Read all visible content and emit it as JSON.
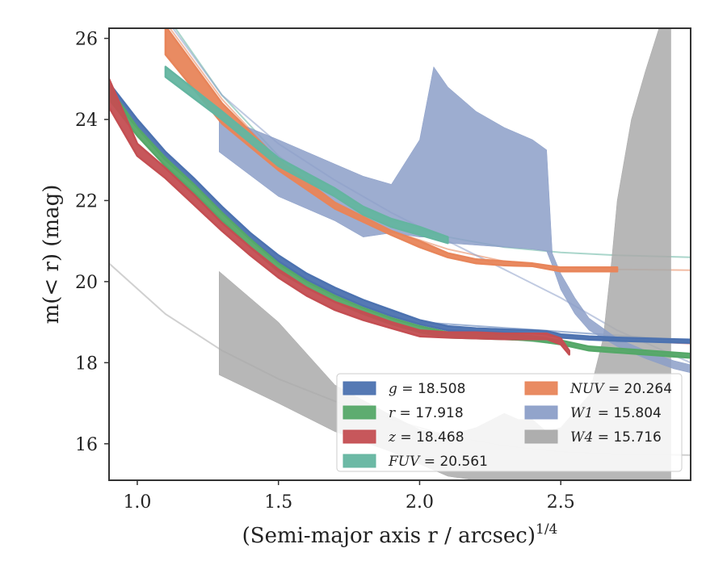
{
  "chart_data": {
    "type": "area",
    "title": "",
    "xlabel": "(Semi-major axis r / arcsec)",
    "xlabel_exponent": "1/4",
    "ylabel": "m(< r) (mag)",
    "xlim": [
      0.9,
      2.96
    ],
    "ylim": [
      26.25,
      15.1
    ],
    "y_inverted": true,
    "grid": false,
    "legend_position": "lower-right",
    "x_ticks": [
      "1.0",
      "1.5",
      "2.0",
      "2.5"
    ],
    "y_ticks": [
      "16",
      "18",
      "20",
      "22",
      "24",
      "26"
    ],
    "legend": [
      {
        "label": "g = 18.508",
        "color": "#4c72b0"
      },
      {
        "label": "r = 17.918",
        "color": "#55a868"
      },
      {
        "label": "z = 18.468",
        "color": "#c44e52"
      },
      {
        "label": "FUV = 20.561",
        "color": "#64b5a0"
      },
      {
        "label": "NUV = 20.264",
        "color": "#e8855a"
      },
      {
        "label": "W1 = 15.804",
        "color": "#8c9fc8"
      },
      {
        "label": "W4 = 15.716",
        "color": "#aaaaaa"
      }
    ],
    "series": [
      {
        "name": "g = 18.508",
        "color": "#4c72b0",
        "band_x": [
          0.9,
          1.0,
          1.1,
          1.2,
          1.3,
          1.4,
          1.5,
          1.6,
          1.7,
          1.8,
          1.9,
          2.0,
          2.1,
          2.2,
          2.3,
          2.4,
          2.45,
          2.5,
          2.6,
          2.7,
          2.8,
          2.9,
          2.96
        ],
        "band_lo": [
          24.9,
          24.0,
          23.2,
          22.55,
          21.85,
          21.2,
          20.65,
          20.2,
          19.85,
          19.55,
          19.3,
          19.05,
          18.9,
          18.85,
          18.82,
          18.8,
          18.78,
          18.7,
          18.65,
          18.62,
          18.6,
          18.58,
          18.57
        ],
        "band_hi": [
          24.6,
          23.8,
          23.0,
          22.4,
          21.7,
          21.05,
          20.5,
          20.05,
          19.7,
          19.4,
          19.15,
          18.95,
          18.8,
          18.78,
          18.75,
          18.72,
          18.7,
          18.62,
          18.57,
          18.54,
          18.52,
          18.5,
          18.49
        ],
        "model_x": [
          2.0,
          2.96
        ],
        "model_y": [
          19.0,
          18.55
        ]
      },
      {
        "name": "r = 17.918",
        "color": "#55a868",
        "band_x": [
          0.9,
          1.0,
          1.1,
          1.2,
          1.3,
          1.4,
          1.5,
          1.6,
          1.7,
          1.8,
          1.9,
          2.0,
          2.1,
          2.2,
          2.3,
          2.4,
          2.5,
          2.6,
          2.7,
          2.8,
          2.9,
          2.96
        ],
        "band_lo": [
          24.8,
          23.8,
          23.05,
          22.4,
          21.7,
          21.05,
          20.45,
          20.0,
          19.65,
          19.35,
          19.1,
          18.9,
          18.75,
          18.7,
          18.68,
          18.65,
          18.55,
          18.4,
          18.35,
          18.3,
          18.25,
          18.22
        ],
        "band_hi": [
          24.5,
          23.6,
          22.85,
          22.2,
          21.5,
          20.85,
          20.25,
          19.85,
          19.5,
          19.2,
          18.95,
          18.75,
          18.62,
          18.6,
          18.58,
          18.55,
          18.45,
          18.3,
          18.25,
          18.2,
          18.15,
          18.12
        ],
        "model_x": [
          2.0,
          2.96
        ],
        "model_y": [
          18.8,
          18.15
        ]
      },
      {
        "name": "z = 18.468",
        "color": "#c44e52",
        "band_x": [
          0.9,
          1.0,
          1.1,
          1.2,
          1.3,
          1.4,
          1.5,
          1.6,
          1.7,
          1.8,
          1.9,
          2.0,
          2.1,
          2.2,
          2.3,
          2.4,
          2.45,
          2.5,
          2.53
        ],
        "band_lo": [
          25.0,
          23.4,
          22.8,
          22.15,
          21.45,
          20.85,
          20.3,
          19.85,
          19.5,
          19.25,
          19.0,
          18.8,
          18.75,
          18.75,
          18.72,
          18.72,
          18.72,
          18.6,
          18.3
        ],
        "band_hi": [
          24.3,
          23.1,
          22.55,
          21.9,
          21.25,
          20.65,
          20.1,
          19.65,
          19.3,
          19.05,
          18.85,
          18.65,
          18.62,
          18.6,
          18.58,
          18.58,
          18.58,
          18.45,
          18.2
        ],
        "model_x": [
          2.0,
          2.96
        ],
        "model_y": [
          18.8,
          18.47
        ]
      },
      {
        "name": "FUV = 20.561",
        "color": "#64b5a0",
        "band_x": [
          1.1,
          1.3,
          1.5,
          1.7,
          1.8,
          1.9,
          2.0,
          2.1
        ],
        "band_lo": [
          25.3,
          24.2,
          23.05,
          22.3,
          21.85,
          21.55,
          21.35,
          21.1
        ],
        "band_hi": [
          25.05,
          24.0,
          22.85,
          22.1,
          21.65,
          21.35,
          21.15,
          20.95
        ],
        "model_x": [
          1.1,
          1.3,
          1.5,
          1.7,
          1.9,
          2.1,
          2.3,
          2.5,
          2.7,
          2.96
        ],
        "model_y": [
          26.6,
          24.6,
          23.1,
          22.1,
          21.5,
          21.1,
          20.85,
          20.72,
          20.65,
          20.6
        ]
      },
      {
        "name": "NUV = 20.264",
        "color": "#e8855a",
        "band_x": [
          1.1,
          1.3,
          1.5,
          1.7,
          1.9,
          2.0,
          2.1,
          2.2,
          2.3,
          2.4,
          2.5,
          2.6,
          2.7
        ],
        "band_lo": [
          26.3,
          24.4,
          23.0,
          21.95,
          21.25,
          21.0,
          20.7,
          20.55,
          20.5,
          20.45,
          20.35,
          20.35,
          20.35
        ],
        "band_hi": [
          25.6,
          23.9,
          22.75,
          21.8,
          21.15,
          20.85,
          20.6,
          20.45,
          20.4,
          20.38,
          20.25,
          20.25,
          20.25
        ],
        "model_x": [
          1.1,
          1.3,
          1.5,
          1.7,
          1.9,
          2.1,
          2.3,
          2.5,
          2.7,
          2.96
        ],
        "model_y": [
          26.4,
          24.5,
          23.0,
          21.95,
          21.25,
          20.8,
          20.5,
          20.35,
          20.3,
          20.28
        ]
      },
      {
        "name": "W1 = 15.804",
        "color": "#8c9fc8",
        "band_x": [
          1.29,
          1.5,
          1.7,
          1.8,
          1.9,
          2.0,
          2.05,
          2.1,
          2.2,
          2.3,
          2.4,
          2.45,
          2.47,
          2.5,
          2.55,
          2.6,
          2.7,
          2.8,
          2.9,
          2.96
        ],
        "band_lo": [
          24.1,
          23.5,
          22.9,
          22.6,
          22.4,
          23.5,
          25.3,
          24.8,
          24.2,
          23.8,
          23.5,
          23.25,
          20.7,
          20.2,
          19.6,
          19.1,
          18.6,
          18.3,
          18.05,
          17.95
        ],
        "band_hi": [
          23.2,
          22.1,
          21.5,
          21.1,
          21.2,
          21.1,
          21.1,
          20.95,
          20.9,
          20.85,
          20.8,
          20.75,
          20.4,
          19.8,
          19.2,
          18.8,
          18.4,
          18.1,
          17.85,
          17.75
        ],
        "model_x": [
          1.1,
          1.3,
          1.5,
          1.7,
          1.9,
          2.1,
          2.3,
          2.5,
          2.7,
          2.96
        ],
        "model_y": [
          26.5,
          24.6,
          23.4,
          22.5,
          21.7,
          21.0,
          20.3,
          19.6,
          18.8,
          18.0
        ]
      },
      {
        "name": "W4 = 15.716",
        "color": "#aaaaaa",
        "band_x": [
          1.29,
          1.5,
          1.7,
          1.9,
          2.0,
          2.1,
          2.2,
          2.3,
          2.35,
          2.4,
          2.45,
          2.5,
          2.6,
          2.65,
          2.68,
          2.7,
          2.75,
          2.8,
          2.85,
          2.89
        ],
        "band_lo": [
          20.25,
          19.0,
          17.45,
          16.7,
          16.35,
          16.2,
          16.4,
          16.75,
          16.6,
          16.6,
          16.3,
          16.4,
          17.2,
          18.6,
          20.5,
          22.0,
          24.0,
          25.2,
          26.3,
          26.3
        ],
        "band_hi": [
          17.7,
          17.0,
          16.3,
          15.8,
          15.5,
          15.2,
          15.1,
          15.1,
          15.1,
          15.1,
          15.1,
          15.1,
          15.1,
          15.1,
          15.1,
          15.1,
          15.1,
          15.1,
          15.1,
          15.1
        ],
        "model_x": [
          0.9,
          1.1,
          1.3,
          1.5,
          1.7,
          1.9,
          2.1,
          2.3,
          2.5,
          2.7,
          2.96
        ],
        "model_y": [
          20.45,
          19.2,
          18.3,
          17.6,
          17.05,
          16.6,
          16.2,
          15.95,
          15.8,
          15.75,
          15.72
        ]
      }
    ]
  }
}
